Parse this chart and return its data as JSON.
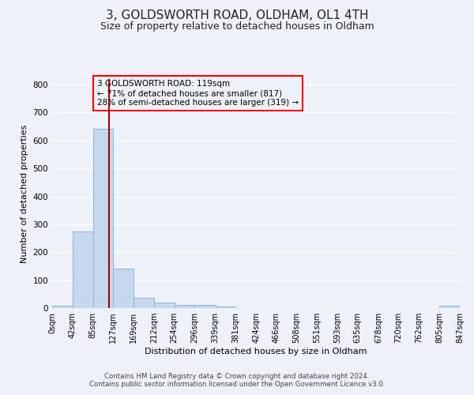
{
  "title": "3, GOLDSWORTH ROAD, OLDHAM, OL1 4TH",
  "subtitle": "Size of property relative to detached houses in Oldham",
  "xlabel": "Distribution of detached houses by size in Oldham",
  "ylabel": "Number of detached properties",
  "bar_color": "#c5d8f0",
  "bar_edge_color": "#8ab4d8",
  "vline_color": "#a00000",
  "vline_x": 119,
  "bin_edges": [
    0,
    42,
    85,
    127,
    169,
    212,
    254,
    296,
    339,
    381,
    424,
    466,
    508,
    551,
    593,
    635,
    678,
    720,
    762,
    805,
    847
  ],
  "bar_heights": [
    8,
    275,
    643,
    140,
    38,
    20,
    12,
    10,
    5,
    0,
    0,
    0,
    0,
    0,
    0,
    0,
    0,
    0,
    0,
    8
  ],
  "ylim": [
    0,
    820
  ],
  "yticks": [
    0,
    100,
    200,
    300,
    400,
    500,
    600,
    700,
    800
  ],
  "annotation_title": "3 GOLDSWORTH ROAD: 119sqm",
  "annotation_line1": "← 71% of detached houses are smaller (817)",
  "annotation_line2": "28% of semi-detached houses are larger (319) →",
  "footer_line1": "Contains HM Land Registry data © Crown copyright and database right 2024.",
  "footer_line2": "Contains public sector information licensed under the Open Government Licence v3.0.",
  "background_color": "#eef2f8",
  "grid_color": "#ffffff",
  "title_fontsize": 11,
  "subtitle_fontsize": 9,
  "tick_label_fontsize": 7,
  "axis_label_fontsize": 8,
  "ylabel_fontsize": 8
}
